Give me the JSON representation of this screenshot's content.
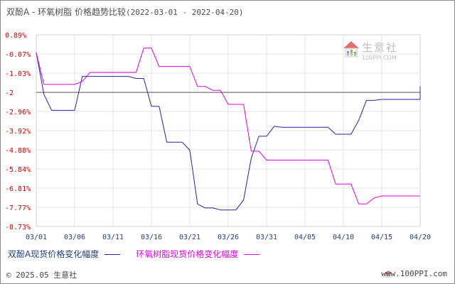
{
  "header": {
    "title": "双酚A - 环氧树脂 价格趋势比较",
    "date_range": "(2022-03-01 - 2022-04-20)"
  },
  "watermark": {
    "name": "生意社",
    "url": "100PPI.COM"
  },
  "footer": {
    "copyright": "© 2025.05 生意社",
    "site": "www.100PPI.com"
  },
  "chart_data": {
    "type": "line",
    "title": "双酚A - 环氧树脂 价格趋势比较",
    "xlabel": "",
    "ylabel": "",
    "x_tick_labels": [
      "03/01",
      "03/06",
      "03/11",
      "03/16",
      "03/21",
      "03/26",
      "03/31",
      "04/05",
      "04/10",
      "04/15",
      "04/20"
    ],
    "y_tick_labels": [
      "0.89%",
      "-0.07%",
      "-1.03%",
      "-2",
      "-2.96%",
      "-3.92%",
      "-4.88%",
      "-5.84%",
      "-6.81%",
      "-7.77%",
      "-8.73%"
    ],
    "ylim": [
      -8.73,
      0.89
    ],
    "grid": true,
    "reference_line": -2,
    "legend_position": "bottom-left",
    "series": [
      {
        "name": "双酚A现货价格变化幅度",
        "color": "#2424a0",
        "points": [
          [
            "03/01",
            0.0
          ],
          [
            "03/02",
            -2.1
          ],
          [
            "03/03",
            -2.9
          ],
          [
            "03/04",
            -2.9
          ],
          [
            "03/05",
            -2.9
          ],
          [
            "03/06",
            -2.9
          ],
          [
            "03/07",
            -1.2
          ],
          [
            "03/08",
            -1.2
          ],
          [
            "03/09",
            -1.2
          ],
          [
            "03/10",
            -1.2
          ],
          [
            "03/11",
            -1.2
          ],
          [
            "03/12",
            -1.2
          ],
          [
            "03/13",
            -1.2
          ],
          [
            "03/14",
            -1.3
          ],
          [
            "03/15",
            -1.3
          ],
          [
            "03/16",
            -2.7
          ],
          [
            "03/17",
            -2.7
          ],
          [
            "03/18",
            -4.5
          ],
          [
            "03/19",
            -4.5
          ],
          [
            "03/20",
            -4.5
          ],
          [
            "03/21",
            -4.9
          ],
          [
            "03/22",
            -7.6
          ],
          [
            "03/23",
            -7.8
          ],
          [
            "03/24",
            -7.8
          ],
          [
            "03/25",
            -7.9
          ],
          [
            "03/26",
            -7.9
          ],
          [
            "03/27",
            -7.9
          ],
          [
            "03/28",
            -7.4
          ],
          [
            "03/29",
            -5.3
          ],
          [
            "03/30",
            -4.2
          ],
          [
            "03/31",
            -4.2
          ],
          [
            "04/01",
            -3.7
          ],
          [
            "04/02",
            -3.75
          ],
          [
            "04/03",
            -3.75
          ],
          [
            "04/04",
            -3.75
          ],
          [
            "04/05",
            -3.75
          ],
          [
            "04/06",
            -3.75
          ],
          [
            "04/07",
            -3.75
          ],
          [
            "04/08",
            -3.75
          ],
          [
            "04/09",
            -4.1
          ],
          [
            "04/10",
            -4.1
          ],
          [
            "04/11",
            -4.1
          ],
          [
            "04/12",
            -3.4
          ],
          [
            "04/13",
            -2.4
          ],
          [
            "04/14",
            -2.4
          ],
          [
            "04/15",
            -2.35
          ],
          [
            "04/16",
            -2.35
          ],
          [
            "04/17",
            -2.35
          ],
          [
            "04/18",
            -2.35
          ],
          [
            "04/19",
            -2.35
          ],
          [
            "04/20",
            -2.35
          ],
          [
            "04/21",
            -1.7
          ]
        ]
      },
      {
        "name": "环氧树脂现货价格变化幅度",
        "color": "#e000e0",
        "points": [
          [
            "03/01",
            0.0
          ],
          [
            "03/02",
            -1.6
          ],
          [
            "03/03",
            -1.6
          ],
          [
            "03/04",
            -1.6
          ],
          [
            "03/05",
            -1.6
          ],
          [
            "03/06",
            -1.6
          ],
          [
            "03/07",
            -1.45
          ],
          [
            "03/08",
            -1.0
          ],
          [
            "03/09",
            -1.0
          ],
          [
            "03/10",
            -1.0
          ],
          [
            "03/11",
            -1.0
          ],
          [
            "03/12",
            -1.0
          ],
          [
            "03/13",
            -1.0
          ],
          [
            "03/14",
            -1.0
          ],
          [
            "03/15",
            0.22
          ],
          [
            "03/16",
            0.22
          ],
          [
            "03/17",
            -0.7
          ],
          [
            "03/18",
            -0.7
          ],
          [
            "03/19",
            -0.7
          ],
          [
            "03/20",
            -0.7
          ],
          [
            "03/21",
            -0.7
          ],
          [
            "03/22",
            -1.7
          ],
          [
            "03/23",
            -1.7
          ],
          [
            "03/24",
            -1.9
          ],
          [
            "03/25",
            -1.9
          ],
          [
            "03/26",
            -2.6
          ],
          [
            "03/27",
            -2.6
          ],
          [
            "03/28",
            -2.6
          ],
          [
            "03/29",
            -4.95
          ],
          [
            "03/30",
            -4.95
          ],
          [
            "03/31",
            -5.4
          ],
          [
            "04/01",
            -5.4
          ],
          [
            "04/02",
            -5.4
          ],
          [
            "04/03",
            -5.4
          ],
          [
            "04/04",
            -5.4
          ],
          [
            "04/05",
            -5.4
          ],
          [
            "04/06",
            -5.4
          ],
          [
            "04/07",
            -5.4
          ],
          [
            "04/08",
            -5.4
          ],
          [
            "04/09",
            -6.6
          ],
          [
            "04/10",
            -6.6
          ],
          [
            "04/11",
            -6.6
          ],
          [
            "04/12",
            -7.6
          ],
          [
            "04/13",
            -7.6
          ],
          [
            "04/14",
            -7.3
          ],
          [
            "04/15",
            -7.2
          ],
          [
            "04/16",
            -7.2
          ],
          [
            "04/17",
            -7.2
          ],
          [
            "04/18",
            -7.2
          ],
          [
            "04/19",
            -7.2
          ],
          [
            "04/20",
            -7.2
          ],
          [
            "04/21",
            -7.2
          ]
        ]
      }
    ]
  }
}
